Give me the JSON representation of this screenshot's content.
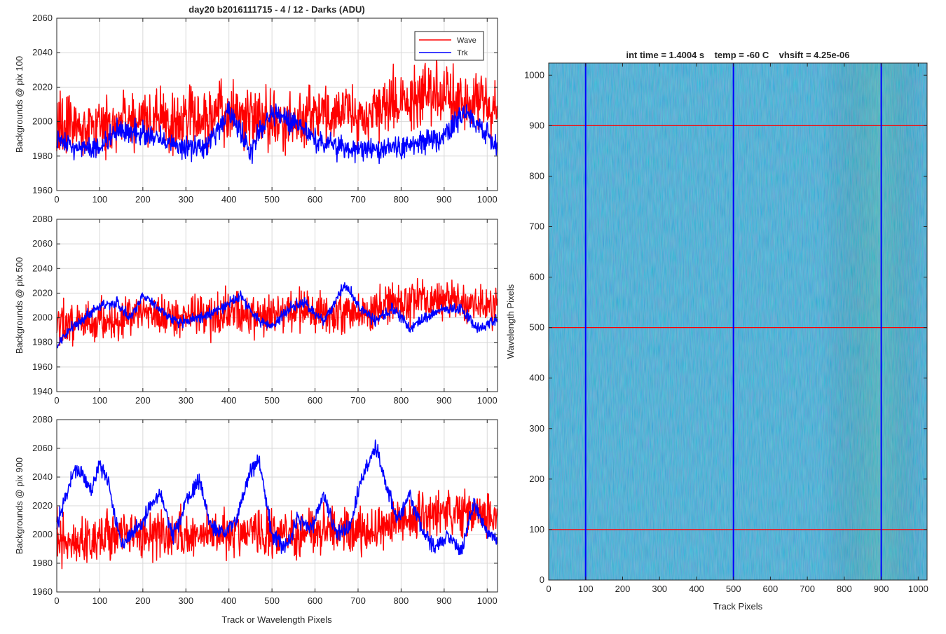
{
  "figure_title": "day20 b2016111715 - 4 / 12 - Darks (ADU)",
  "image_title": "int time = 1.4004 s    temp = -60 C    vhsift = 4.25e-06",
  "colors": {
    "wave": "#ff0000",
    "trk": "#0000ff",
    "grid": "#d9d9d9",
    "axis": "#262626",
    "image_base": "#1f8fc8",
    "image_high": "#7fcf5a",
    "image_low": "#2c52d8"
  },
  "chart_data": [
    {
      "type": "line",
      "title": "day20 b2016111715 - 4 / 12 - Darks (ADU)",
      "xlabel": "",
      "ylabel": "Backgrounds @ pix 100",
      "xlim": [
        0,
        1024
      ],
      "ylim": [
        1960,
        2060
      ],
      "xticks": [
        0,
        100,
        200,
        300,
        400,
        500,
        600,
        700,
        800,
        900,
        1000
      ],
      "yticks": [
        1960,
        1980,
        2000,
        2020,
        2040,
        2060
      ],
      "grid": true,
      "legend": {
        "position": "top-right",
        "entries": [
          "Wave",
          "Trk"
        ]
      },
      "series": [
        {
          "name": "Wave",
          "color": "#ff0000",
          "x": [
            0,
            50,
            100,
            150,
            200,
            250,
            300,
            350,
            400,
            450,
            500,
            550,
            600,
            650,
            700,
            750,
            800,
            850,
            900,
            950,
            1000,
            1023
          ],
          "values": [
            1997,
            1999,
            1996,
            2000,
            2003,
            2000,
            1999,
            2001,
            2004,
            2002,
            2001,
            2000,
            2005,
            2004,
            2003,
            2008,
            2013,
            2015,
            2016,
            2012,
            2008,
            2004
          ],
          "noise": 15
        },
        {
          "name": "Trk",
          "color": "#0000ff",
          "x": [
            0,
            50,
            100,
            150,
            200,
            250,
            300,
            350,
            400,
            450,
            500,
            550,
            600,
            650,
            700,
            750,
            800,
            850,
            900,
            950,
            1000,
            1023
          ],
          "values": [
            1990,
            1984,
            1985,
            1996,
            1992,
            1988,
            1985,
            1986,
            2005,
            1983,
            2006,
            2000,
            1990,
            1985,
            1984,
            1983,
            1985,
            1987,
            1993,
            2006,
            1992,
            1987
          ],
          "noise": 6
        }
      ]
    },
    {
      "type": "line",
      "title": "",
      "xlabel": "",
      "ylabel": "Backgrounds @ pix 500",
      "xlim": [
        0,
        1024
      ],
      "ylim": [
        1940,
        2080
      ],
      "xticks": [
        0,
        100,
        200,
        300,
        400,
        500,
        600,
        700,
        800,
        900,
        1000
      ],
      "yticks": [
        1940,
        1960,
        1980,
        2000,
        2020,
        2040,
        2060,
        2080
      ],
      "grid": true,
      "series": [
        {
          "name": "Wave",
          "color": "#ff0000",
          "x": [
            0,
            50,
            100,
            150,
            200,
            250,
            300,
            350,
            400,
            450,
            500,
            550,
            600,
            650,
            700,
            750,
            800,
            850,
            900,
            950,
            1000,
            1023
          ],
          "values": [
            1997,
            1996,
            1997,
            1999,
            2003,
            2002,
            2000,
            2002,
            2004,
            2003,
            2002,
            2004,
            2005,
            2005,
            2004,
            2007,
            2012,
            2013,
            2014,
            2013,
            2012,
            2010
          ],
          "noise": 14
        },
        {
          "name": "Trk",
          "color": "#0000ff",
          "x": [
            0,
            30,
            60,
            100,
            140,
            170,
            200,
            240,
            280,
            320,
            360,
            400,
            430,
            460,
            500,
            540,
            580,
            620,
            670,
            700,
            740,
            780,
            820,
            860,
            900,
            940,
            980,
            1023
          ],
          "values": [
            1978,
            1990,
            1998,
            2010,
            2012,
            1999,
            2018,
            2007,
            1996,
            1999,
            2004,
            2012,
            2018,
            2000,
            1993,
            2008,
            2012,
            1996,
            2028,
            2010,
            1996,
            2008,
            1992,
            2000,
            2008,
            2006,
            1990,
            2000
          ],
          "noise": 4
        }
      ]
    },
    {
      "type": "line",
      "title": "",
      "xlabel": "Track or Wavelength Pixels",
      "ylabel": "Backgrounds @ pix 900",
      "xlim": [
        0,
        1024
      ],
      "ylim": [
        1960,
        2080
      ],
      "xticks": [
        0,
        100,
        200,
        300,
        400,
        500,
        600,
        700,
        800,
        900,
        1000
      ],
      "yticks": [
        1960,
        1980,
        2000,
        2020,
        2040,
        2060,
        2080
      ],
      "grid": true,
      "series": [
        {
          "name": "Wave",
          "color": "#ff0000",
          "x": [
            0,
            50,
            100,
            150,
            200,
            250,
            300,
            350,
            400,
            450,
            500,
            550,
            600,
            650,
            700,
            750,
            800,
            850,
            900,
            950,
            1000,
            1023
          ],
          "values": [
            1998,
            1995,
            1996,
            1997,
            2000,
            2001,
            1999,
            2000,
            2002,
            2001,
            1999,
            2000,
            2003,
            2004,
            2003,
            2006,
            2010,
            2012,
            2014,
            2015,
            2014,
            2012
          ],
          "noise": 14
        },
        {
          "name": "Trk",
          "color": "#0000ff",
          "x": [
            0,
            20,
            40,
            60,
            80,
            100,
            120,
            150,
            170,
            200,
            220,
            240,
            270,
            300,
            330,
            360,
            390,
            420,
            450,
            470,
            500,
            530,
            560,
            590,
            620,
            650,
            680,
            710,
            740,
            760,
            790,
            820,
            850,
            880,
            910,
            940,
            970,
            1000,
            1023
          ],
          "values": [
            2005,
            2025,
            2045,
            2042,
            2030,
            2050,
            2035,
            1992,
            1998,
            2008,
            2022,
            2028,
            1998,
            2022,
            2038,
            2005,
            2000,
            2012,
            2045,
            2052,
            2000,
            1992,
            2010,
            2003,
            2028,
            2000,
            2005,
            2040,
            2062,
            2040,
            2010,
            2028,
            2002,
            1990,
            2000,
            1988,
            2022,
            2002,
            1998
          ],
          "noise": 5
        }
      ]
    },
    {
      "type": "heatmap",
      "title": "int time = 1.4004 s    temp = -60 C    vhsift = 4.25e-06",
      "xlabel": "Track Pixels",
      "ylabel": "Wavelength Pixels",
      "xlim": [
        0,
        1024
      ],
      "ylim": [
        0,
        1024
      ],
      "xticks": [
        0,
        100,
        200,
        300,
        400,
        500,
        600,
        700,
        800,
        900,
        1000
      ],
      "yticks": [
        0,
        100,
        200,
        300,
        400,
        500,
        600,
        700,
        800,
        900,
        1000
      ],
      "grid": false,
      "markers": {
        "vertical_lines_x": [
          100,
          500,
          900
        ],
        "vertical_color": "#0000ff",
        "horizontal_lines_y": [
          100,
          500,
          900
        ],
        "horizontal_color": "#ff0000"
      }
    }
  ]
}
